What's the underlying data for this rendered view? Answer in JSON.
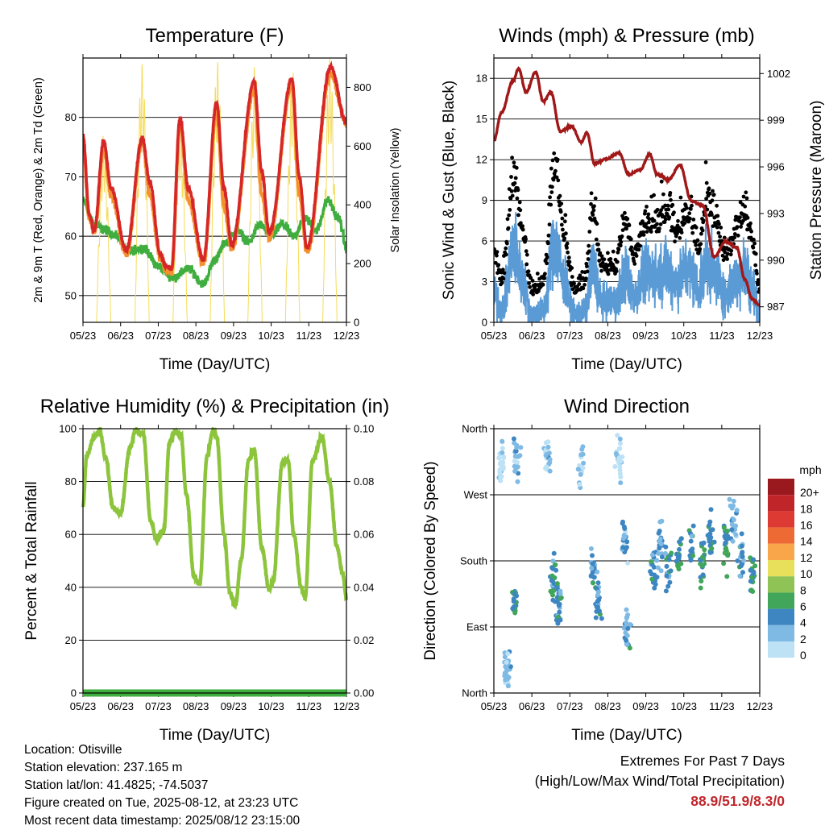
{
  "info": {
    "location": "Location: Otisville",
    "elevation": "Station elevation: 237.165 m",
    "latlon": "Station lat/lon: 41.4825; -74.5037",
    "created": "Figure created on Tue, 2025-08-12, at 23:23 UTC",
    "recent": "Most recent data timestamp: 2025/08/12 23:15:00"
  },
  "extremes": {
    "title": "Extremes For Past 7 Days",
    "subtitle": "(High/Low/Max Wind/Total Precipitation)",
    "values": "88.9/51.9/8.3/0"
  },
  "colors": {
    "temp2m": "#d62728",
    "temp9m": "#f4902f",
    "dewpoint": "#3fae3f",
    "insolation": "#f5dc5a",
    "wind": "#5b9bd5",
    "gust": "#000000",
    "pressure": "#a01818",
    "rh": "#8cc43c",
    "precip": "#3fae3f"
  },
  "chart_data": [
    {
      "type": "line",
      "title": "Temperature (F)",
      "xlabel": "Time (Day/UTC)",
      "ylabel": "2m & 9m T (Red, Orange) & 2m Td (Green)",
      "ylabel_right": "Solar Insolation (Yellow)",
      "x_ticks": [
        "05/23",
        "06/23",
        "07/23",
        "08/23",
        "09/23",
        "10/23",
        "11/23",
        "12/23"
      ],
      "y_ticks": [
        50,
        60,
        70,
        80
      ],
      "ylim": [
        45.5,
        90
      ],
      "y2_ticks": [
        0,
        200,
        400,
        600,
        800
      ],
      "y2lim": [
        0,
        900
      ],
      "x_days": [
        0,
        7
      ],
      "series": [
        {
          "key": "temp2m",
          "anchors": [
            [
              0,
              77
            ],
            [
              0.17,
              63.5
            ],
            [
              0.3,
              61
            ],
            [
              0.55,
              76
            ],
            [
              0.75,
              68
            ],
            [
              1.15,
              57.5
            ],
            [
              1.58,
              76.5
            ],
            [
              1.78,
              69
            ],
            [
              2.05,
              57
            ],
            [
              2.2,
              55
            ],
            [
              2.35,
              54.5
            ],
            [
              2.58,
              80
            ],
            [
              2.8,
              68
            ],
            [
              3.2,
              56
            ],
            [
              3.55,
              82.5
            ],
            [
              3.75,
              68
            ],
            [
              3.95,
              58.5
            ],
            [
              4.55,
              86
            ],
            [
              4.75,
              71
            ],
            [
              4.95,
              60.5
            ],
            [
              5.55,
              86.5
            ],
            [
              5.75,
              70
            ],
            [
              5.95,
              58
            ],
            [
              6.58,
              88.5
            ],
            [
              7,
              79
            ]
          ]
        },
        {
          "key": "temp9m",
          "anchors": [
            [
              0,
              76
            ],
            [
              0.17,
              63
            ],
            [
              0.3,
              60.5
            ],
            [
              0.55,
              75
            ],
            [
              0.75,
              67
            ],
            [
              1.15,
              57
            ],
            [
              1.58,
              76
            ],
            [
              1.78,
              67
            ],
            [
              2.05,
              56.5
            ],
            [
              2.2,
              54.5
            ],
            [
              2.35,
              54
            ],
            [
              2.58,
              79
            ],
            [
              2.8,
              66
            ],
            [
              3.2,
              55.5
            ],
            [
              3.55,
              81
            ],
            [
              3.75,
              65
            ],
            [
              3.95,
              58
            ],
            [
              4.55,
              84.5
            ],
            [
              4.75,
              67
            ],
            [
              4.95,
              60
            ],
            [
              5.55,
              85.5
            ],
            [
              5.75,
              67
            ],
            [
              5.95,
              57.5
            ],
            [
              6.58,
              87.5
            ],
            [
              7,
              79
            ]
          ]
        },
        {
          "key": "dewpoint",
          "anchors": [
            [
              0,
              66
            ],
            [
              0.3,
              62
            ],
            [
              0.6,
              61
            ],
            [
              0.9,
              60
            ],
            [
              1.2,
              57.5
            ],
            [
              1.6,
              58
            ],
            [
              2.0,
              55
            ],
            [
              2.4,
              53
            ],
            [
              2.8,
              54.5
            ],
            [
              3.2,
              52
            ],
            [
              3.5,
              56
            ],
            [
              3.8,
              59
            ],
            [
              4.1,
              61
            ],
            [
              4.4,
              59
            ],
            [
              4.7,
              62
            ],
            [
              5.0,
              60
            ],
            [
              5.3,
              62
            ],
            [
              5.6,
              60
            ],
            [
              5.9,
              63
            ],
            [
              6.2,
              61
            ],
            [
              6.5,
              66
            ],
            [
              6.8,
              63
            ],
            [
              7,
              58
            ]
          ]
        },
        {
          "key": "insolation",
          "peaks": [
            [
              0.55,
              640
            ],
            [
              1.57,
              880
            ],
            [
              2.58,
              690
            ],
            [
              3.57,
              890
            ],
            [
              4.57,
              880
            ],
            [
              5.57,
              860
            ],
            [
              6.56,
              900
            ]
          ]
        }
      ]
    },
    {
      "type": "line",
      "title": "Winds (mph) & Pressure (mb)",
      "xlabel": "Time (Day/UTC)",
      "ylabel": "Sonic Wind & Gust (Blue, Black)",
      "ylabel_right": "Station Pressure (Maroon)",
      "x_ticks": [
        "05/23",
        "06/23",
        "07/23",
        "08/23",
        "09/23",
        "10/23",
        "11/23",
        "12/23"
      ],
      "y_ticks": [
        0,
        3,
        6,
        9,
        12,
        15,
        18
      ],
      "ylim": [
        0,
        19.5
      ],
      "y2_ticks": [
        987,
        990,
        993,
        996,
        999,
        1002
      ],
      "y2lim": [
        986,
        1003
      ],
      "x_days": [
        0,
        7
      ],
      "series": [
        {
          "key": "pressure",
          "anchors": [
            [
              0,
              997.7
            ],
            [
              0.2,
              999.5
            ],
            [
              0.5,
              1001.5
            ],
            [
              0.65,
              1002.3
            ],
            [
              0.85,
              1000.8
            ],
            [
              1.1,
              1002.1
            ],
            [
              1.3,
              1000.2
            ],
            [
              1.5,
              1000.8
            ],
            [
              1.75,
              998.3
            ],
            [
              2.05,
              998.6
            ],
            [
              2.3,
              997.6
            ],
            [
              2.45,
              998.2
            ],
            [
              2.65,
              996.2
            ],
            [
              2.95,
              996.5
            ],
            [
              3.3,
              996.9
            ],
            [
              3.55,
              995.5
            ],
            [
              3.85,
              995.8
            ],
            [
              4.1,
              996.8
            ],
            [
              4.3,
              995.5
            ],
            [
              4.6,
              995.2
            ],
            [
              4.9,
              996.1
            ],
            [
              5.2,
              993.8
            ],
            [
              5.5,
              993.5
            ],
            [
              5.8,
              990.2
            ],
            [
              6.1,
              991.2
            ],
            [
              6.4,
              990.8
            ],
            [
              6.6,
              988.8
            ],
            [
              6.8,
              987.5
            ],
            [
              7,
              987.1
            ]
          ]
        },
        {
          "key": "wind",
          "mean_anchors": [
            [
              0,
              2
            ],
            [
              0.2,
              1
            ],
            [
              0.55,
              5.5
            ],
            [
              0.75,
              3
            ],
            [
              1.0,
              0.5
            ],
            [
              1.3,
              0.8
            ],
            [
              1.6,
              6
            ],
            [
              1.85,
              3
            ],
            [
              2.1,
              0.5
            ],
            [
              2.4,
              0.8
            ],
            [
              2.6,
              4
            ],
            [
              2.85,
              1.5
            ],
            [
              3.2,
              1.5
            ],
            [
              3.45,
              3.5
            ],
            [
              3.7,
              2
            ],
            [
              4.0,
              3.5
            ],
            [
              4.3,
              3.5
            ],
            [
              4.55,
              4
            ],
            [
              4.8,
              3
            ],
            [
              5.1,
              4
            ],
            [
              5.4,
              2.5
            ],
            [
              5.6,
              4.5
            ],
            [
              5.85,
              3.5
            ],
            [
              6.1,
              2
            ],
            [
              6.4,
              3
            ],
            [
              6.6,
              4
            ],
            [
              6.8,
              2.5
            ],
            [
              7,
              0.5
            ]
          ]
        }
      ]
    },
    {
      "type": "line",
      "title": "Relative Humidity (%) & Precipitation (in)",
      "xlabel": "Time (Day/UTC)",
      "ylabel": "Percent & Total Rainfall",
      "x_ticks": [
        "05/23",
        "06/23",
        "07/23",
        "08/23",
        "09/23",
        "10/23",
        "11/23",
        "12/23"
      ],
      "y_ticks": [
        0,
        20,
        40,
        60,
        80,
        100
      ],
      "ylim": [
        0,
        100
      ],
      "y2_ticks": [
        "0.00",
        "0.02",
        "0.04",
        "0.06",
        "0.08",
        "0.10"
      ],
      "y2lim": [
        0,
        0.1
      ],
      "x_days": [
        0,
        7
      ],
      "series": [
        {
          "key": "rh",
          "anchors": [
            [
              0,
              71
            ],
            [
              0.1,
              90
            ],
            [
              0.3,
              97
            ],
            [
              0.45,
              99
            ],
            [
              0.6,
              89
            ],
            [
              0.8,
              70
            ],
            [
              1.0,
              68
            ],
            [
              1.25,
              93
            ],
            [
              1.4,
              99.5
            ],
            [
              1.6,
              98
            ],
            [
              1.8,
              65
            ],
            [
              1.95,
              58
            ],
            [
              2.15,
              62
            ],
            [
              2.3,
              95
            ],
            [
              2.45,
              99
            ],
            [
              2.6,
              98
            ],
            [
              2.75,
              75
            ],
            [
              2.95,
              44
            ],
            [
              3.1,
              41
            ],
            [
              3.3,
              90
            ],
            [
              3.45,
              99
            ],
            [
              3.55,
              97
            ],
            [
              3.75,
              60
            ],
            [
              3.9,
              38
            ],
            [
              4.05,
              33
            ],
            [
              4.2,
              50
            ],
            [
              4.4,
              88
            ],
            [
              4.55,
              92
            ],
            [
              4.75,
              55
            ],
            [
              4.95,
              39
            ],
            [
              5.05,
              42
            ],
            [
              5.3,
              87
            ],
            [
              5.45,
              88
            ],
            [
              5.6,
              60
            ],
            [
              5.8,
              40
            ],
            [
              5.9,
              36
            ],
            [
              6.1,
              88
            ],
            [
              6.35,
              97
            ],
            [
              6.55,
              80
            ],
            [
              6.75,
              55
            ],
            [
              6.9,
              45
            ],
            [
              7,
              36
            ]
          ]
        },
        {
          "key": "precip",
          "values": [
            0,
            0
          ]
        }
      ]
    },
    {
      "type": "scatter",
      "title": "Wind Direction",
      "xlabel": "Time (Day/UTC)",
      "ylabel": "Direction (Colored By Speed)",
      "x_ticks": [
        "05/23",
        "06/23",
        "07/23",
        "08/23",
        "09/23",
        "10/23",
        "11/23",
        "12/23"
      ],
      "y_ticks": [
        "North",
        "East",
        "South",
        "West",
        "North"
      ],
      "ylim": [
        0,
        360
      ],
      "x_days": [
        0,
        7
      ],
      "legend": {
        "title": "mph",
        "labels": [
          "20+",
          "18",
          "16",
          "14",
          "12",
          "10",
          "8",
          "6",
          "4",
          "2",
          "0"
        ],
        "colors": [
          "#99191e",
          "#c0252a",
          "#dc3a32",
          "#ee6a34",
          "#f9a64a",
          "#e8e05b",
          "#8fc355",
          "#41a55a",
          "#3d86c2",
          "#7ebae4",
          "#bde2f5"
        ]
      },
      "clusters": [
        [
          0.2,
          320,
          0
        ],
        [
          0.35,
          30,
          2
        ],
        [
          0.55,
          130,
          5
        ],
        [
          0.6,
          320,
          2
        ],
        [
          1.4,
          320,
          1
        ],
        [
          1.55,
          160,
          5
        ],
        [
          1.7,
          120,
          4
        ],
        [
          2.3,
          310,
          1
        ],
        [
          2.6,
          170,
          4
        ],
        [
          2.75,
          130,
          3
        ],
        [
          3.3,
          320,
          1
        ],
        [
          3.45,
          210,
          3
        ],
        [
          3.5,
          80,
          3
        ],
        [
          4.2,
          170,
          4
        ],
        [
          4.4,
          200,
          3
        ],
        [
          4.6,
          175,
          4
        ],
        [
          4.9,
          190,
          5
        ],
        [
          5.2,
          200,
          4
        ],
        [
          5.5,
          180,
          5
        ],
        [
          5.7,
          210,
          4
        ],
        [
          6.1,
          200,
          5
        ],
        [
          6.3,
          230,
          3
        ],
        [
          6.5,
          180,
          4
        ],
        [
          6.8,
          160,
          5
        ]
      ]
    }
  ]
}
